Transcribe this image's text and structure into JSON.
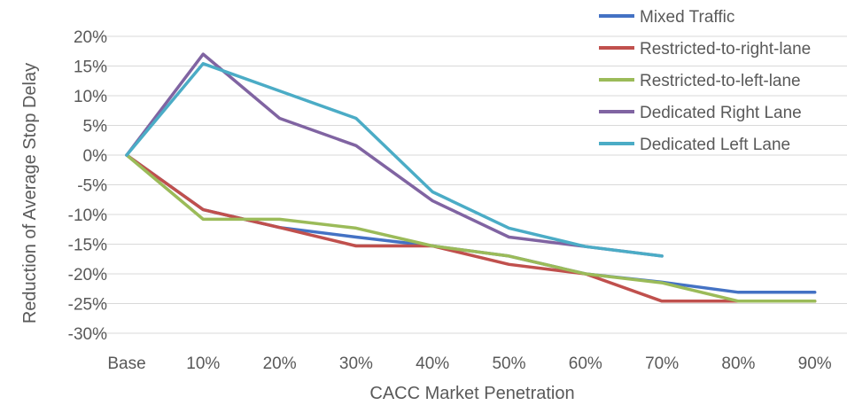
{
  "chart_data": {
    "type": "line",
    "xlabel": "CACC Market Penetration",
    "ylabel": "Reduction of Average Stop Delay",
    "categories": [
      "Base",
      "10%",
      "20%",
      "30%",
      "40%",
      "50%",
      "60%",
      "70%",
      "80%",
      "90%"
    ],
    "y_ticks": [
      20,
      15,
      10,
      5,
      0,
      -5,
      -10,
      -15,
      -20,
      -25,
      -30
    ],
    "y_tick_labels": [
      "20%",
      "15%",
      "10%",
      "5%",
      "0%",
      "-5%",
      "-10%",
      "-15%",
      "-20%",
      "-25%",
      "-30%"
    ],
    "ylim": [
      -30,
      20
    ],
    "grid": true,
    "legend_position": "top-right",
    "series": [
      {
        "name": "Mixed Traffic",
        "color": "#4472C4",
        "values": [
          0,
          -9.2,
          -12.2,
          -13.8,
          -15.3,
          -17.0,
          -20.0,
          -21.4,
          -23.1,
          -23.1
        ]
      },
      {
        "name": "Restricted-to-right-lane",
        "color": "#C0504D",
        "values": [
          0,
          -9.2,
          -12.2,
          -15.3,
          -15.3,
          -18.4,
          -20.0,
          -24.6,
          -24.6,
          -24.6
        ]
      },
      {
        "name": "Restricted-to-left-lane",
        "color": "#9BBB59",
        "values": [
          0,
          -10.8,
          -10.8,
          -12.3,
          -15.3,
          -17.0,
          -20.0,
          -21.5,
          -24.6,
          -24.6
        ]
      },
      {
        "name": "Dedicated Right Lane",
        "color": "#8064A2",
        "values": [
          0,
          17.0,
          6.2,
          1.6,
          -7.7,
          -13.8,
          -15.4,
          -17.0,
          null,
          null
        ]
      },
      {
        "name": "Dedicated Left Lane",
        "color": "#4BACC6",
        "values": [
          0,
          15.4,
          10.8,
          6.2,
          -6.2,
          -12.3,
          -15.4,
          -17.0,
          null,
          null
        ]
      }
    ]
  }
}
